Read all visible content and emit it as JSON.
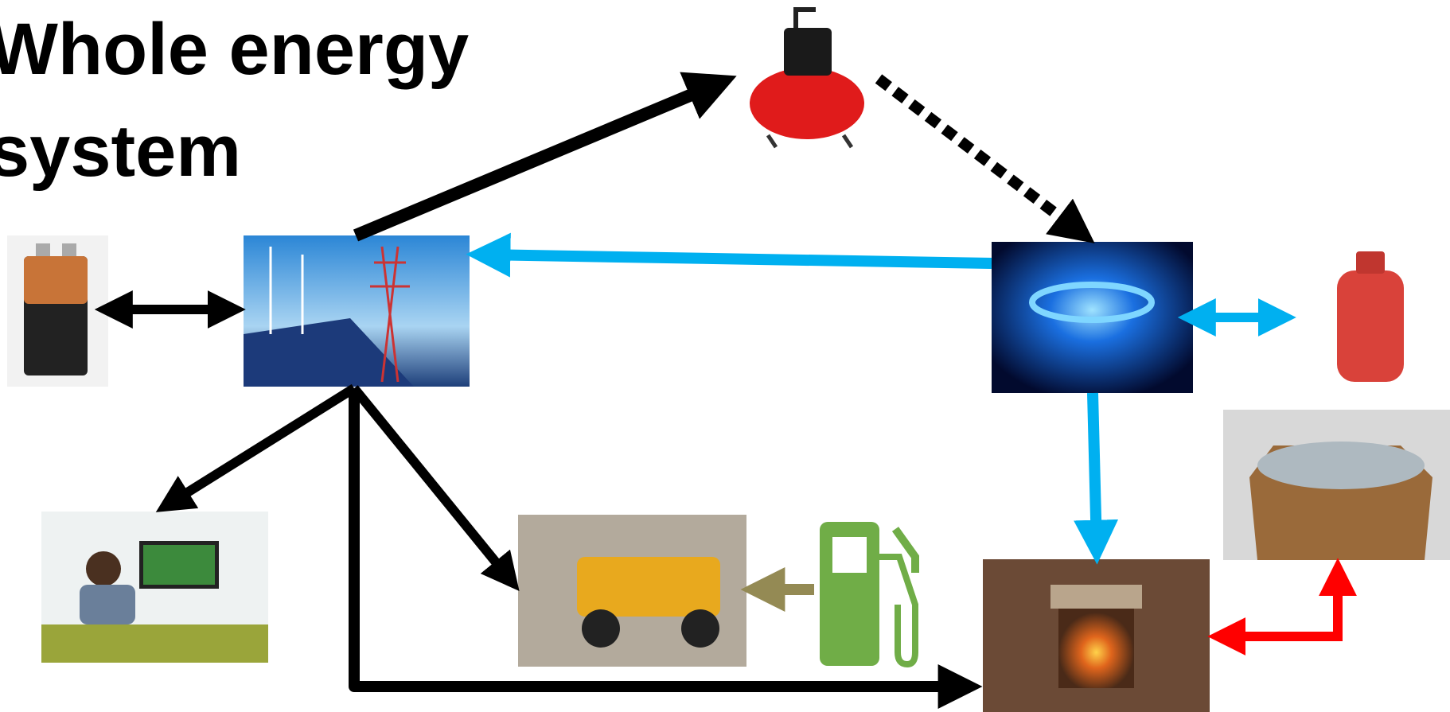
{
  "title_lines": [
    "Whole energy",
    "system"
  ]
}
